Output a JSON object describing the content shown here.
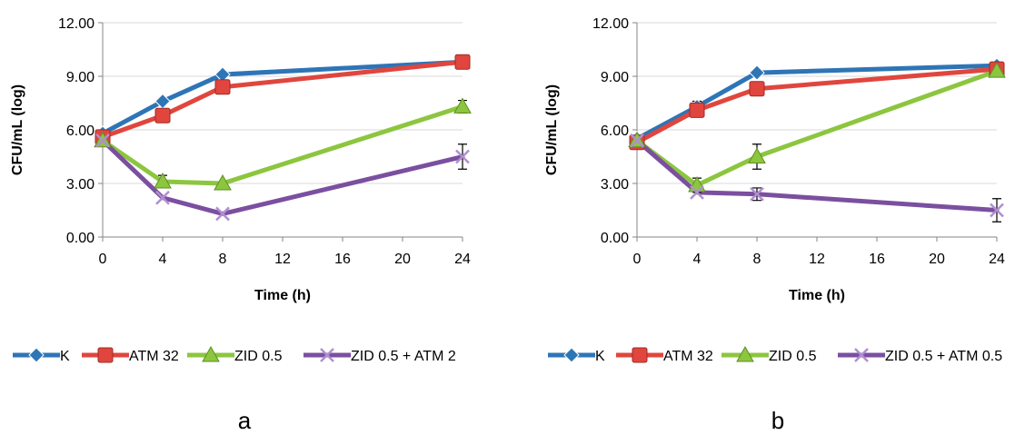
{
  "chart_data": [
    {
      "type": "line",
      "panel_label": "a",
      "xlabel": "Time (h)",
      "ylabel": "CFU/mL (log)",
      "x_ticks": [
        0,
        4,
        8,
        12,
        16,
        20,
        24
      ],
      "y_ticks": [
        "0.00",
        "3.00",
        "6.00",
        "9.00",
        "12.00"
      ],
      "xlim": [
        0,
        24
      ],
      "ylim": [
        0,
        12
      ],
      "grid": "horizontal",
      "legend": "bottom",
      "series": [
        {
          "name": "K",
          "color": "#2e75b6",
          "marker": "diamond",
          "x": [
            0,
            4,
            8,
            24
          ],
          "y": [
            5.8,
            7.6,
            9.1,
            9.8
          ],
          "err": [
            0,
            0,
            0,
            0
          ]
        },
        {
          "name": "ATM 32",
          "color": "#e0463e",
          "marker": "square",
          "x": [
            0,
            4,
            8,
            24
          ],
          "y": [
            5.6,
            6.8,
            8.4,
            9.8
          ],
          "err": [
            0,
            0,
            0,
            0
          ]
        },
        {
          "name": "ZID 0.5",
          "color": "#8cc63f",
          "marker": "triangle",
          "x": [
            0,
            4,
            8,
            24
          ],
          "y": [
            5.4,
            3.1,
            3.0,
            7.3
          ],
          "err": [
            0,
            0.35,
            0,
            0.35
          ]
        },
        {
          "name": "ZID 0.5 + ATM 2",
          "color": "#7b4fa0",
          "marker": "x",
          "x": [
            0,
            4,
            8,
            24
          ],
          "y": [
            5.4,
            2.2,
            1.3,
            4.5
          ],
          "err": [
            0,
            0,
            0,
            0.7
          ]
        }
      ]
    },
    {
      "type": "line",
      "panel_label": "b",
      "xlabel": "Time (h)",
      "ylabel": "CFU/mL (log)",
      "x_ticks": [
        0,
        4,
        8,
        12,
        16,
        20,
        24
      ],
      "y_ticks": [
        "0.00",
        "3.00",
        "6.00",
        "9.00",
        "12.00"
      ],
      "xlim": [
        0,
        24
      ],
      "ylim": [
        0,
        12
      ],
      "grid": "horizontal",
      "legend": "bottom",
      "series": [
        {
          "name": "K",
          "color": "#2e75b6",
          "marker": "diamond",
          "x": [
            0,
            4,
            8,
            24
          ],
          "y": [
            5.5,
            7.3,
            9.2,
            9.6
          ],
          "err": [
            0,
            0.3,
            0,
            0
          ]
        },
        {
          "name": "ATM 32",
          "color": "#e0463e",
          "marker": "square",
          "x": [
            0,
            4,
            8,
            24
          ],
          "y": [
            5.3,
            7.1,
            8.3,
            9.4
          ],
          "err": [
            0,
            0,
            0,
            0
          ]
        },
        {
          "name": "ZID 0.5",
          "color": "#8cc63f",
          "marker": "triangle",
          "x": [
            0,
            4,
            8,
            24
          ],
          "y": [
            5.4,
            2.9,
            4.5,
            9.3
          ],
          "err": [
            0,
            0.4,
            0.7,
            0
          ]
        },
        {
          "name": "ZID 0.5 + ATM 0.5",
          "color": "#7b4fa0",
          "marker": "x",
          "x": [
            0,
            4,
            8,
            24
          ],
          "y": [
            5.4,
            2.5,
            2.4,
            1.5
          ],
          "err": [
            0,
            0,
            0.35,
            0.65
          ]
        }
      ]
    }
  ]
}
